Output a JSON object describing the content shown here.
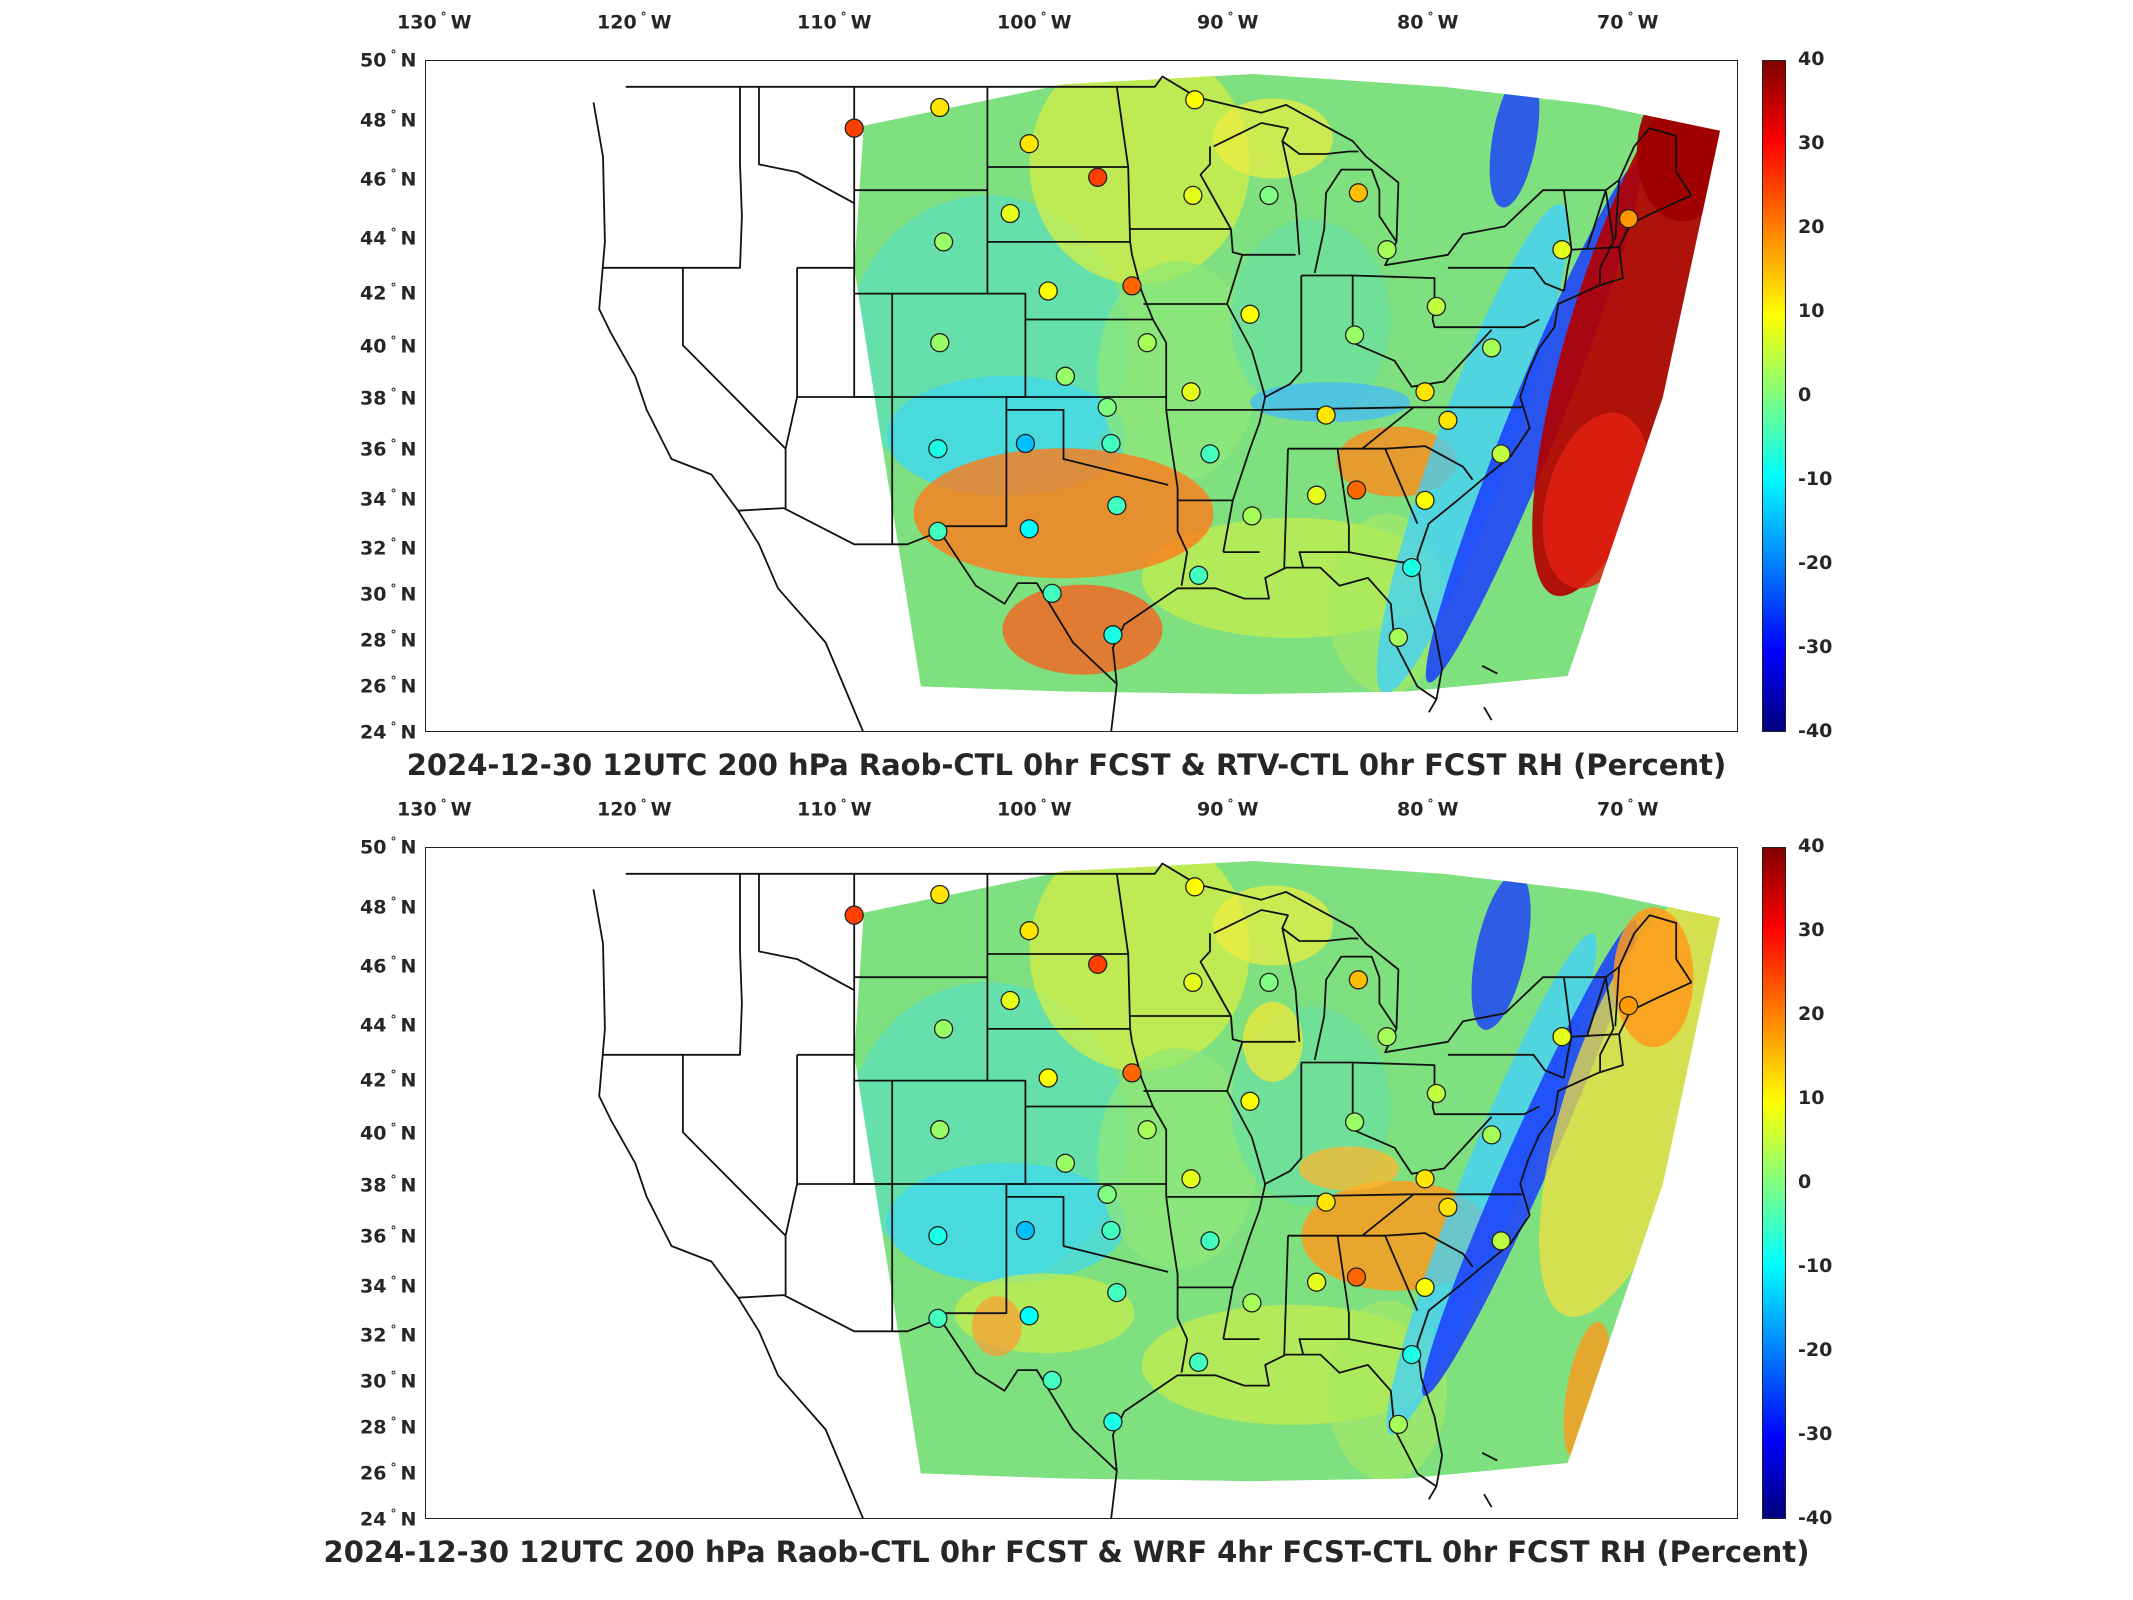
{
  "panels": [
    {
      "title": "2024-12-30 12UTC 200 hPa Raob-CTL 0hr FCST & RTV-CTL 0hr FCST RH (Percent)",
      "variant": "rtv",
      "colors": {
        "east_anomaly": "#b30000",
        "coastal_band": "#1a3cff"
      }
    },
    {
      "title": "2024-12-30 12UTC 200 hPa Raob-CTL 0hr FCST & WRF 4hr FCST-CTL 0hr FCST RH (Percent)",
      "variant": "wrf",
      "colors": {
        "east_anomaly": "#ff9a1a",
        "coastal_band": "#1a3cff"
      }
    }
  ],
  "lon_labels": [
    {
      "deg": "130",
      "dir": "W"
    },
    {
      "deg": "120",
      "dir": "W"
    },
    {
      "deg": "110",
      "dir": "W"
    },
    {
      "deg": "100",
      "dir": "W"
    },
    {
      "deg": "90",
      "dir": "W"
    },
    {
      "deg": "80",
      "dir": "W"
    },
    {
      "deg": "70",
      "dir": "W"
    }
  ],
  "lat_labels": [
    {
      "deg": "50",
      "dir": "N"
    },
    {
      "deg": "48",
      "dir": "N"
    },
    {
      "deg": "46",
      "dir": "N"
    },
    {
      "deg": "44",
      "dir": "N"
    },
    {
      "deg": "42",
      "dir": "N"
    },
    {
      "deg": "40",
      "dir": "N"
    },
    {
      "deg": "38",
      "dir": "N"
    },
    {
      "deg": "36",
      "dir": "N"
    },
    {
      "deg": "34",
      "dir": "N"
    },
    {
      "deg": "32",
      "dir": "N"
    },
    {
      "deg": "30",
      "dir": "N"
    },
    {
      "deg": "28",
      "dir": "N"
    },
    {
      "deg": "26",
      "dir": "N"
    },
    {
      "deg": "24",
      "dir": "N"
    }
  ],
  "colorbar": {
    "ticks": [
      "40",
      "30",
      "20",
      "10",
      "0",
      "-10",
      "-20",
      "-30",
      "-40"
    ],
    "range": [
      -40,
      40
    ],
    "colormap": "jet"
  },
  "raob_stations": [
    {
      "lon": -111,
      "lat": 47.4,
      "value": 25
    },
    {
      "lon": -106.5,
      "lat": 48.2,
      "value": 12
    },
    {
      "lon": -101.8,
      "lat": 46.8,
      "value": 12
    },
    {
      "lon": -98.2,
      "lat": 45.5,
      "value": 25
    },
    {
      "lon": -93.1,
      "lat": 48.5,
      "value": 10
    },
    {
      "lon": -93.2,
      "lat": 44.8,
      "value": 8
    },
    {
      "lon": -102.8,
      "lat": 44.1,
      "value": 8
    },
    {
      "lon": -106.3,
      "lat": 43.0,
      "value": 2
    },
    {
      "lon": -100.8,
      "lat": 41.1,
      "value": 10
    },
    {
      "lon": -96.4,
      "lat": 41.3,
      "value": 22
    },
    {
      "lon": -89.2,
      "lat": 44.8,
      "value": 0
    },
    {
      "lon": -84.5,
      "lat": 44.9,
      "value": 15
    },
    {
      "lon": -83.0,
      "lat": 42.7,
      "value": 3
    },
    {
      "lon": -90.2,
      "lat": 40.2,
      "value": 10
    },
    {
      "lon": -84.7,
      "lat": 39.4,
      "value": 2
    },
    {
      "lon": -80.4,
      "lat": 40.5,
      "value": 5
    },
    {
      "lon": -77.5,
      "lat": 38.9,
      "value": 3
    },
    {
      "lon": -106.5,
      "lat": 39.1,
      "value": 2
    },
    {
      "lon": -95.6,
      "lat": 39.1,
      "value": 3
    },
    {
      "lon": -99.9,
      "lat": 37.8,
      "value": 2
    },
    {
      "lon": -93.3,
      "lat": 37.2,
      "value": 8
    },
    {
      "lon": -86.2,
      "lat": 36.3,
      "value": 12
    },
    {
      "lon": -81.0,
      "lat": 37.2,
      "value": 12
    },
    {
      "lon": -79.8,
      "lat": 36.1,
      "value": 12
    },
    {
      "lon": -97.5,
      "lat": 35.2,
      "value": -5
    },
    {
      "lon": -97.7,
      "lat": 36.6,
      "value": 0
    },
    {
      "lon": -102.0,
      "lat": 35.2,
      "value": -15
    },
    {
      "lon": -106.6,
      "lat": 35.0,
      "value": -8
    },
    {
      "lon": -92.3,
      "lat": 34.8,
      "value": -5
    },
    {
      "lon": -97.2,
      "lat": 32.8,
      "value": -5
    },
    {
      "lon": -101.8,
      "lat": 31.9,
      "value": -10
    },
    {
      "lon": -106.6,
      "lat": 31.8,
      "value": -5
    },
    {
      "lon": -100.6,
      "lat": 29.4,
      "value": -5
    },
    {
      "lon": -97.4,
      "lat": 27.8,
      "value": -8
    },
    {
      "lon": -92.9,
      "lat": 30.1,
      "value": -5
    },
    {
      "lon": -90.1,
      "lat": 32.4,
      "value": 3
    },
    {
      "lon": -86.7,
      "lat": 33.2,
      "value": 8
    },
    {
      "lon": -84.6,
      "lat": 33.4,
      "value": 22
    },
    {
      "lon": -81.0,
      "lat": 33.0,
      "value": 10
    },
    {
      "lon": -81.7,
      "lat": 30.4,
      "value": -8
    },
    {
      "lon": -82.4,
      "lat": 27.7,
      "value": 3
    },
    {
      "lon": -77.0,
      "lat": 34.8,
      "value": 5
    },
    {
      "lon": -70.3,
      "lat": 43.9,
      "value": 18
    },
    {
      "lon": -73.8,
      "lat": 42.7,
      "value": 8
    }
  ]
}
